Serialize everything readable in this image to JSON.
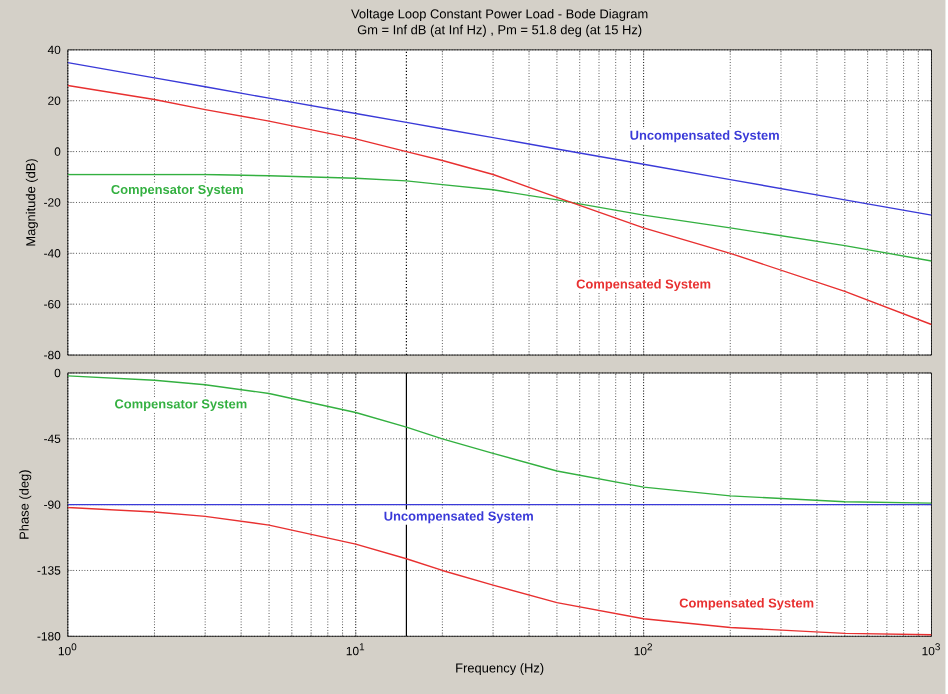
{
  "chart_data": [
    {
      "type": "line",
      "title": "Voltage Loop Constant Power Load - Bode Diagram",
      "subtitle": "Gm = Inf dB (at Inf Hz) ,  Pm = 51.8 deg (at 15 Hz)",
      "ylabel": "Magnitude (dB)",
      "log": "x",
      "grid": true,
      "legend": false,
      "tick_labels": "y",
      "x": [
        1,
        2,
        3,
        5,
        10,
        15,
        20,
        30,
        50,
        100,
        200,
        500,
        1000
      ],
      "xlim": [
        1,
        1000
      ],
      "xticks": [
        {
          "value": 1,
          "label": null
        },
        {
          "value": 10,
          "label": null
        },
        {
          "value": 100,
          "label": null
        },
        {
          "value": 1000,
          "label": null
        }
      ],
      "ylim": [
        -80,
        40
      ],
      "yticks": [
        -80,
        -60,
        -40,
        -20,
        0,
        20,
        40
      ],
      "series": [
        {
          "name": "Uncompensated System",
          "color": "#3a3ad8",
          "values": [
            35,
            29,
            25.5,
            21,
            15,
            11.5,
            9,
            5.5,
            1,
            -5,
            -11,
            -19,
            -25
          ]
        },
        {
          "name": "Compensator System",
          "color": "#33b040",
          "values": [
            -9,
            -9,
            -9,
            -9.5,
            -10.5,
            -11.5,
            -13,
            -15,
            -19,
            -25,
            -30,
            -37,
            -43
          ]
        },
        {
          "name": "Compensated System",
          "color": "#e83030",
          "values": [
            26,
            20.5,
            16.5,
            12,
            5,
            0,
            -3.5,
            -9,
            -18,
            -30,
            -40,
            -55,
            -68
          ]
        }
      ],
      "ref_lines": [
        {
          "axis": "x",
          "value": 15,
          "color": "#000000",
          "line_style": "dotted"
        }
      ]
    },
    {
      "type": "line",
      "xlabel": "Frequency  (Hz)",
      "ylabel": "Phase (deg)",
      "log": "x",
      "grid": true,
      "legend": false,
      "x": [
        1,
        2,
        3,
        5,
        10,
        15,
        20,
        30,
        50,
        100,
        200,
        500,
        1000
      ],
      "xlim": [
        1,
        1000
      ],
      "xticks": [
        {
          "value": 1,
          "label": "10$^{0}$"
        },
        {
          "value": 10,
          "label": "10$^{1}$"
        },
        {
          "value": 100,
          "label": "10$^{2}$"
        },
        {
          "value": 1000,
          "label": "10$^{3}$"
        }
      ],
      "ylim": [
        -180,
        0
      ],
      "yticks": [
        -180,
        -135,
        -90,
        -45,
        0
      ],
      "series": [
        {
          "name": "Compensator System",
          "color": "#33b040",
          "values": [
            -2,
            -5,
            -8,
            -14,
            -27,
            -37,
            -45,
            -55,
            -67,
            -78,
            -84,
            -88,
            -89
          ]
        },
        {
          "name": "Uncompensated System",
          "color": "#3a3ad8",
          "values": [
            -90,
            -90,
            -90,
            -90,
            -90,
            -90,
            -90,
            -90,
            -90,
            -90,
            -90,
            -90,
            -90
          ]
        },
        {
          "name": "Compensated System",
          "color": "#e83030",
          "values": [
            -92,
            -95,
            -98,
            -104,
            -117,
            -127,
            -135,
            -145,
            -157,
            -168,
            -174,
            -178,
            -179
          ]
        }
      ],
      "ref_lines": [
        {
          "axis": "x",
          "value": 15,
          "color": "#000000",
          "line_style": "solid"
        }
      ]
    }
  ]
}
